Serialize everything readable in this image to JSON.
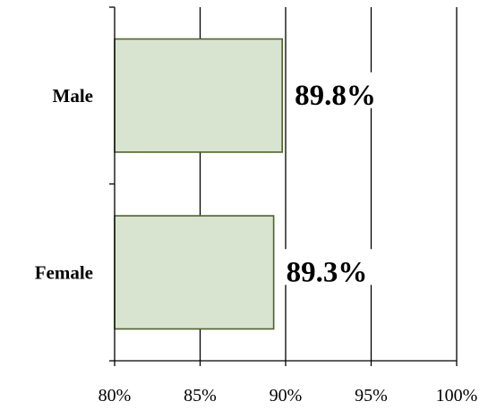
{
  "chart_data": {
    "type": "bar",
    "orientation": "horizontal",
    "categories": [
      "Male",
      "Female"
    ],
    "values": [
      89.8,
      89.3
    ],
    "data_labels": [
      "89.8%",
      "89.3%"
    ],
    "xlim": [
      80,
      100
    ],
    "x_ticks": [
      80,
      85,
      90,
      95,
      100
    ],
    "x_tick_labels": [
      "80%",
      "85%",
      "90%",
      "95%",
      "100%"
    ],
    "title": "",
    "xlabel": "",
    "ylabel": "",
    "grid": "vertical",
    "legend": "none",
    "colors": {
      "bar_fill": "#d8e4d0",
      "bar_stroke": "#4f6228",
      "grid": "#000000",
      "axis": "#000000"
    }
  }
}
